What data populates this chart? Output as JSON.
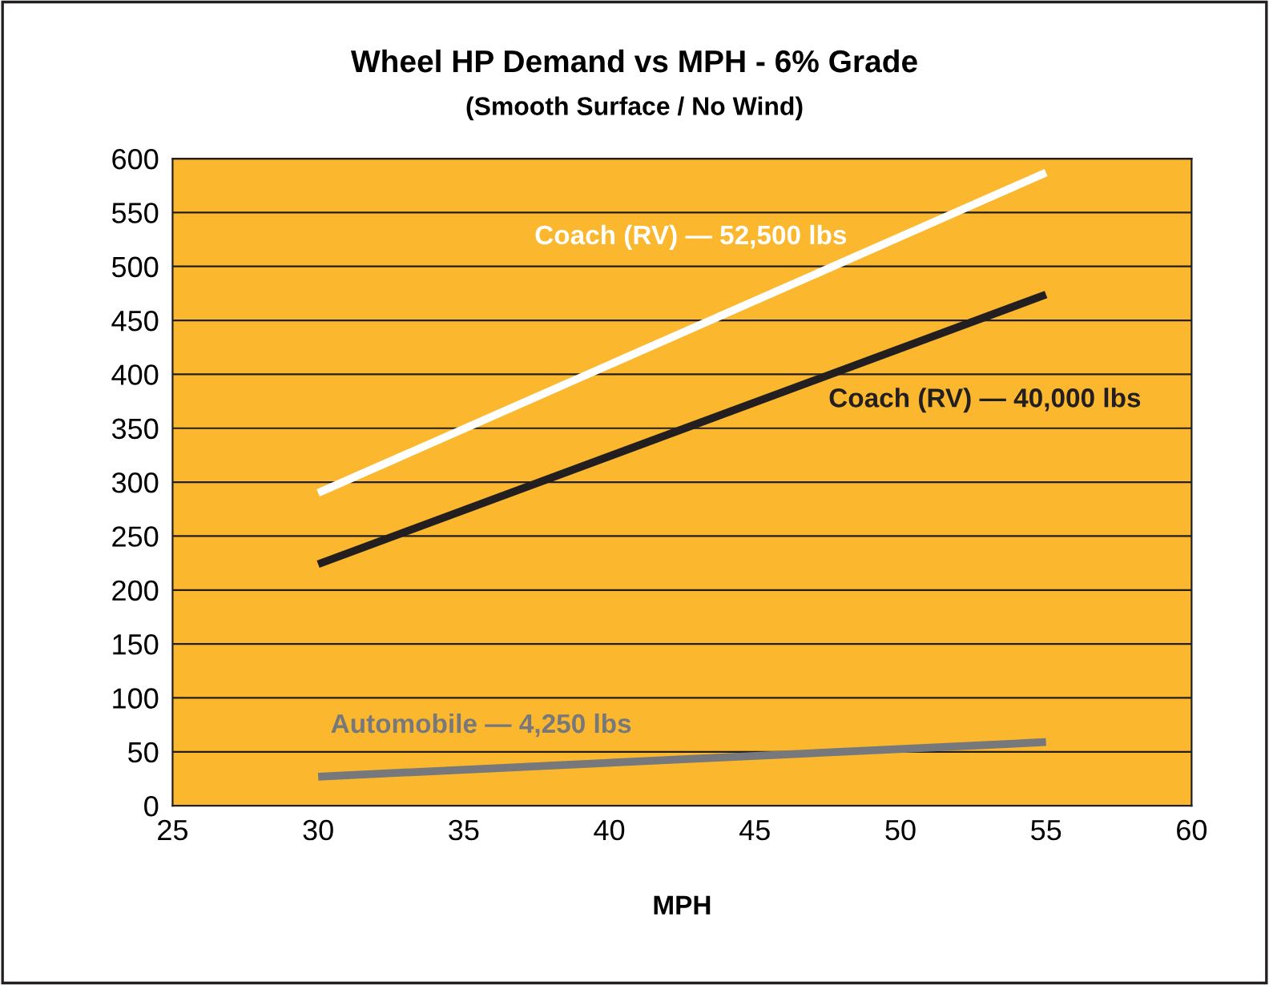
{
  "chart_data": {
    "type": "line",
    "title": "Wheel HP Demand vs MPH - 6% Grade",
    "subtitle": "(Smooth Surface / No Wind)",
    "xlabel": "MPH",
    "x": [
      30,
      55
    ],
    "series": [
      {
        "name": "Coach (RV) — 52,500 lbs",
        "color": "#ffffff",
        "values": [
          290,
          587
        ]
      },
      {
        "name": "Coach (RV) — 40,000 lbs",
        "color": "#231f20",
        "values": [
          224,
          474
        ]
      },
      {
        "name": "Automobile — 4,250 lbs",
        "color": "#77787b",
        "values": [
          27,
          59
        ]
      }
    ],
    "xlim": [
      25,
      60
    ],
    "xticks": [
      25,
      30,
      35,
      40,
      45,
      50,
      55,
      60
    ],
    "ylim": [
      0,
      600
    ],
    "yticks": [
      0,
      50,
      100,
      150,
      200,
      250,
      300,
      350,
      400,
      450,
      500,
      550,
      600
    ],
    "grid": "y",
    "legend": false,
    "marker": "none",
    "line_style": "solid"
  }
}
